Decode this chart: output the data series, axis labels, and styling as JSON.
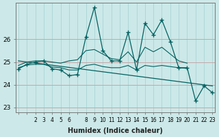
{
  "title": "",
  "xlabel": "Humidex (Indice chaleur)",
  "background_color": "#cce8e8",
  "grid_color": "#aad4d4",
  "line_color": "#006060",
  "hours": [
    0,
    1,
    2,
    3,
    4,
    5,
    6,
    7,
    8,
    9,
    10,
    11,
    12,
    13,
    14,
    15,
    16,
    17,
    18,
    19,
    20,
    21,
    22,
    23
  ],
  "humidex_main": [
    24.7,
    24.9,
    25.0,
    25.05,
    24.7,
    24.65,
    24.4,
    24.45,
    26.1,
    27.4,
    25.5,
    25.05,
    25.05,
    26.3,
    24.65,
    26.7,
    26.2,
    26.85,
    25.9,
    24.75,
    24.75,
    23.3,
    23.95,
    23.65
  ],
  "upper_x": [
    0,
    1,
    2,
    3,
    4,
    5,
    6,
    7,
    8,
    9,
    10,
    11,
    12,
    13,
    14,
    15,
    16,
    17,
    18,
    19,
    20
  ],
  "upper_y": [
    24.85,
    25.0,
    25.05,
    25.05,
    25.0,
    24.95,
    25.05,
    25.1,
    25.5,
    25.55,
    25.35,
    25.15,
    25.1,
    25.45,
    25.0,
    25.65,
    25.45,
    25.65,
    25.35,
    25.05,
    24.95
  ],
  "flat_x": [
    0,
    1,
    2,
    3,
    4,
    5,
    6,
    7,
    8,
    9,
    10,
    11,
    12,
    13,
    14,
    15,
    16,
    17,
    18,
    19,
    20
  ],
  "flat_y": [
    24.75,
    24.87,
    24.9,
    24.9,
    24.78,
    24.75,
    24.65,
    24.65,
    24.85,
    24.9,
    24.8,
    24.75,
    24.75,
    24.85,
    24.65,
    24.85,
    24.8,
    24.85,
    24.8,
    24.75,
    24.72
  ],
  "trend_x": [
    0,
    23
  ],
  "trend_y": [
    25.05,
    23.95
  ],
  "ylim": [
    22.8,
    27.6
  ],
  "yticks": [
    23,
    24,
    25,
    26
  ],
  "xlim": [
    -0.3,
    23.3
  ]
}
